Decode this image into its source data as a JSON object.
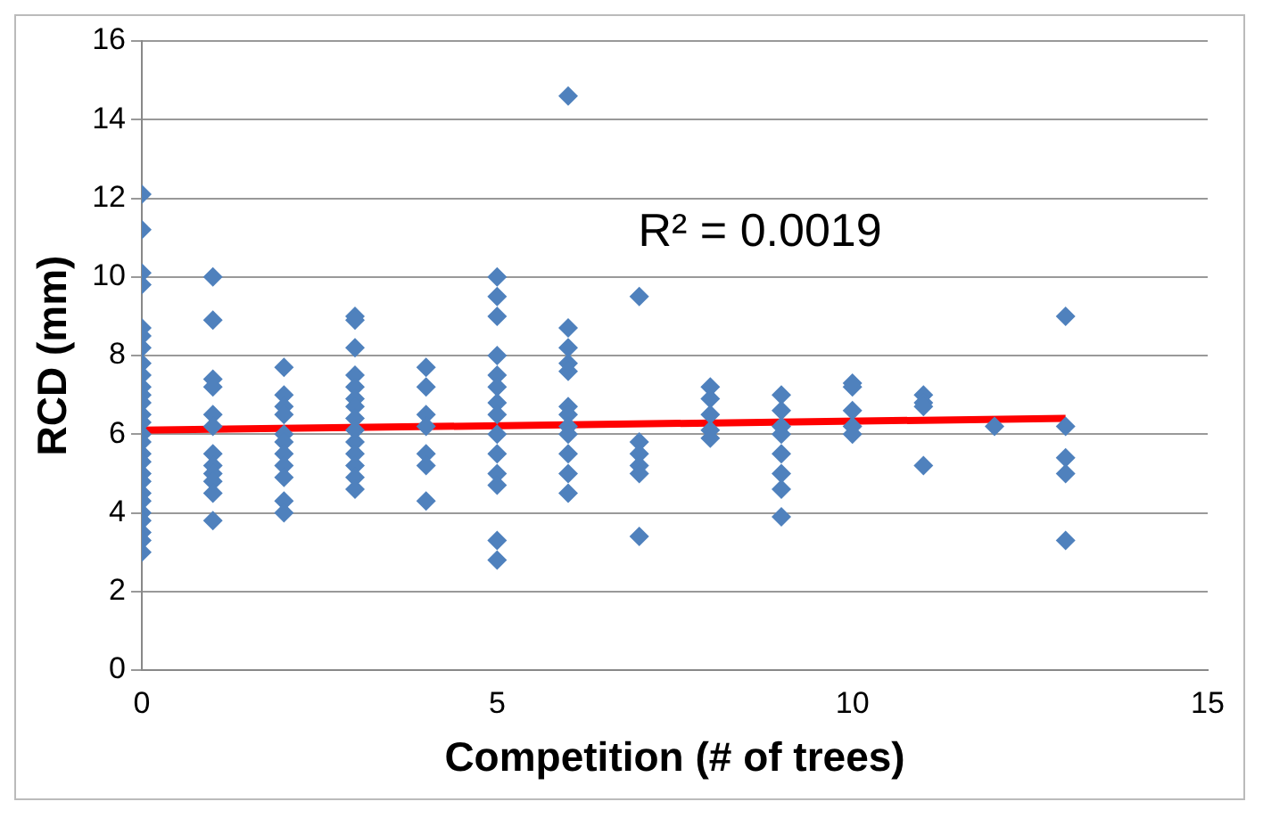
{
  "chart_data": {
    "type": "scatter",
    "xlabel": "Competition (# of trees)",
    "ylabel": "RCD (mm)",
    "xlim": [
      0,
      15
    ],
    "xticks": [
      0,
      5,
      10,
      15
    ],
    "ylim": [
      0,
      16
    ],
    "yticks": [
      0,
      2,
      4,
      6,
      8,
      10,
      12,
      14,
      16
    ],
    "grid": "y",
    "legend": false,
    "marker": "diamond",
    "annotations": [
      "R² = 0.0019"
    ],
    "series": [
      {
        "color": "#4f81bd",
        "x": [
          0,
          0,
          0,
          0,
          0,
          0,
          0,
          0,
          0,
          0,
          0,
          0,
          0,
          0,
          0,
          0,
          0,
          0,
          0,
          0,
          0,
          0,
          0,
          0,
          0,
          0,
          0,
          1,
          1,
          1,
          1,
          1,
          1,
          1,
          1,
          1,
          1,
          1,
          1,
          2,
          2,
          2,
          2,
          2,
          2,
          2,
          2,
          2,
          2,
          2,
          3,
          3,
          3,
          3,
          3,
          3,
          3,
          3,
          3,
          3,
          3,
          3,
          3,
          3,
          4,
          4,
          4,
          4,
          4,
          4,
          4,
          5,
          5,
          5,
          5,
          5,
          5,
          5,
          5,
          5,
          5,
          5,
          5,
          5,
          5,
          6,
          6,
          6,
          6,
          6,
          6,
          6,
          6,
          6,
          6,
          6,
          6,
          7,
          7,
          7,
          7,
          7,
          7,
          8,
          8,
          8,
          8,
          8,
          9,
          9,
          9,
          9,
          9,
          9,
          9,
          9,
          10,
          10,
          10,
          10,
          10,
          11,
          11,
          11,
          11,
          12,
          13,
          13,
          13,
          13,
          13
        ],
        "values": [
          12.1,
          11.2,
          10.1,
          9.8,
          8.7,
          8.5,
          8.2,
          7.8,
          7.5,
          7.2,
          7.0,
          6.8,
          6.5,
          6.3,
          6.0,
          5.8,
          5.5,
          5.3,
          5.0,
          4.8,
          4.5,
          4.3,
          4.0,
          3.8,
          3.5,
          3.3,
          3.0,
          10.0,
          8.9,
          7.4,
          7.2,
          6.5,
          6.2,
          5.5,
          5.2,
          5.0,
          4.8,
          4.5,
          3.8,
          7.7,
          7.0,
          6.7,
          6.5,
          6.0,
          5.8,
          5.5,
          5.2,
          4.9,
          4.3,
          4.0,
          9.0,
          8.9,
          8.2,
          7.5,
          7.2,
          6.9,
          6.7,
          6.4,
          6.1,
          5.8,
          5.5,
          5.2,
          4.9,
          4.6,
          7.7,
          7.2,
          6.5,
          6.2,
          5.5,
          5.2,
          4.3,
          10.0,
          9.5,
          9.0,
          8.0,
          7.5,
          7.2,
          6.8,
          6.5,
          6.0,
          5.5,
          5.0,
          4.7,
          3.3,
          2.8,
          14.6,
          8.7,
          8.2,
          7.8,
          7.6,
          6.7,
          6.5,
          6.2,
          6.0,
          5.5,
          5.0,
          4.5,
          9.5,
          5.8,
          5.5,
          5.2,
          5.0,
          3.4,
          7.2,
          6.9,
          6.5,
          6.1,
          5.9,
          7.0,
          6.6,
          6.2,
          6.0,
          5.5,
          5.0,
          4.6,
          3.9,
          7.3,
          7.2,
          6.6,
          6.2,
          6.0,
          7.0,
          6.8,
          6.7,
          5.2,
          6.2,
          9.0,
          6.2,
          5.4,
          5.0,
          3.3
        ]
      },
      {
        "type": "line",
        "color": "#ff0000",
        "marker": "none",
        "line_style": "solid",
        "x": [
          0,
          13
        ],
        "values": [
          6.1,
          6.4
        ]
      }
    ]
  }
}
